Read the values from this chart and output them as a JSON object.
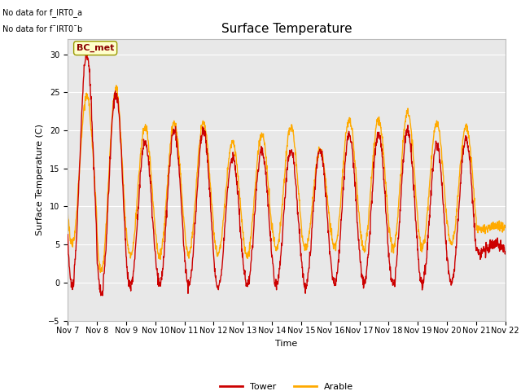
{
  "title": "Surface Temperature",
  "ylabel": "Surface Temperature (C)",
  "xlabel": "Time",
  "annotation_text1": "No data for f_IRT0_a",
  "annotation_text2": "No data for f¯IRT0¯b",
  "bc_met_label": "BC_met",
  "legend_tower": "Tower",
  "legend_arable": "Arable",
  "ylim": [
    -5,
    32
  ],
  "yticks": [
    -5,
    0,
    5,
    10,
    15,
    20,
    25,
    30
  ],
  "tower_color": "#cc0000",
  "arable_color": "#ffaa00",
  "bg_color": "#e8e8e8",
  "grid_color": "#ffffff",
  "start_day": 7,
  "end_day": 22,
  "tower_peaks": [
    30,
    25,
    18.5,
    20,
    20,
    16.5,
    17.5,
    17.5,
    17.5,
    19.5,
    19.5,
    20,
    18,
    19,
    5
  ],
  "tower_troughs": [
    -0.5,
    -1.5,
    -0.5,
    -0.3,
    -0.3,
    -0.5,
    -0.5,
    -0.2,
    -0.3,
    -0.2,
    -0.1,
    -0.2,
    -0.2,
    0,
    4
  ],
  "arable_peaks": [
    24.5,
    25.5,
    20.5,
    21,
    21,
    18.5,
    19.5,
    20.5,
    17.5,
    21.5,
    21.5,
    22.5,
    21,
    20.5,
    7.5
  ],
  "arable_troughs": [
    5.0,
    1.5,
    3.5,
    3.5,
    3.8,
    3.8,
    3.5,
    4.5,
    4.5,
    4.5,
    4.5,
    4.5,
    4.5,
    5,
    7
  ],
  "peak_phase": 0.58,
  "trough_phase": 0.15,
  "n_points": 1500,
  "line_width": 1.0,
  "title_fontsize": 11,
  "label_fontsize": 8,
  "tick_fontsize": 7,
  "legend_fontsize": 8
}
